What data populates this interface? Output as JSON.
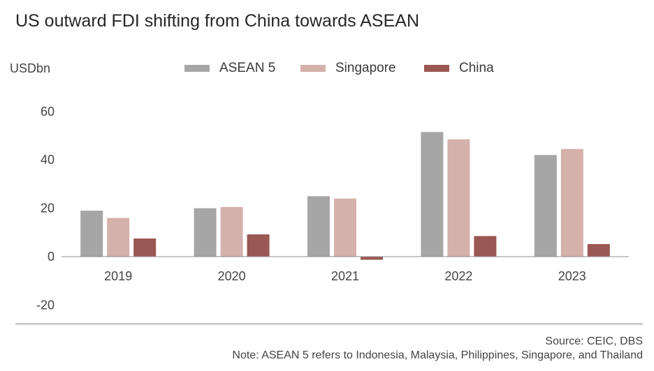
{
  "chart_data": {
    "type": "bar",
    "title": "US outward FDI shifting from China towards ASEAN",
    "ylabel": "USDbn",
    "xlabel": "",
    "categories": [
      "2019",
      "2020",
      "2021",
      "2022",
      "2023"
    ],
    "series": [
      {
        "name": "ASEAN 5",
        "color": "#a6a6a6",
        "values": [
          19,
          20,
          25,
          51.5,
          42
        ]
      },
      {
        "name": "Singapore",
        "color": "#d4b1ab",
        "values": [
          16,
          20.5,
          24,
          48.5,
          44.5
        ]
      },
      {
        "name": "China",
        "color": "#9b5753",
        "values": [
          7.5,
          9.2,
          -1.3,
          8.5,
          5.2
        ]
      }
    ],
    "ylim": [
      -20,
      60
    ],
    "yticks": [
      -20,
      0,
      20,
      40,
      60
    ],
    "grid": false,
    "legend": "top"
  },
  "footer": {
    "source": "Source: CEIC, DBS",
    "note": "Note: ASEAN 5 refers to Indonesia, Malaysia, Philippines, Singapore, and Thailand"
  }
}
